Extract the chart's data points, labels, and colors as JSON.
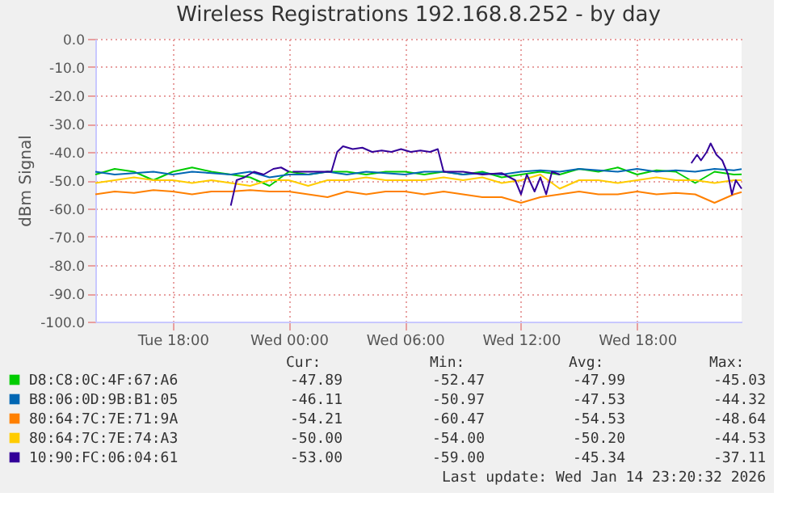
{
  "chart_data": {
    "type": "line",
    "title": "Wireless Registrations 192.168.8.252 - by day",
    "ylabel": "dBm Signal",
    "x": [
      "2026-01-13T14:00",
      "2026-01-13T15:00",
      "2026-01-13T16:00",
      "2026-01-13T17:00",
      "2026-01-13T18:00",
      "2026-01-13T19:00",
      "2026-01-13T20:00",
      "2026-01-13T21:00",
      "2026-01-13T22:00",
      "2026-01-13T23:00",
      "2026-01-14T00:00",
      "2026-01-14T01:00",
      "2026-01-14T02:00",
      "2026-01-14T03:00",
      "2026-01-14T04:00",
      "2026-01-14T05:00",
      "2026-01-14T06:00",
      "2026-01-14T07:00",
      "2026-01-14T08:00",
      "2026-01-14T09:00",
      "2026-01-14T10:00",
      "2026-01-14T11:00",
      "2026-01-14T12:00",
      "2026-01-14T13:00",
      "2026-01-14T14:00",
      "2026-01-14T15:00",
      "2026-01-14T16:00",
      "2026-01-14T17:00",
      "2026-01-14T18:00",
      "2026-01-14T19:00",
      "2026-01-14T20:00",
      "2026-01-14T21:00",
      "2026-01-14T22:00",
      "2026-01-14T23:00",
      "2026-01-14T23:24"
    ],
    "xlim": [
      "2026-01-13T14:00",
      "2026-01-14T23:24"
    ],
    "xticks": [
      {
        "value": "2026-01-13T18:00",
        "label": "Tue 18:00"
      },
      {
        "value": "2026-01-14T00:00",
        "label": "Wed 00:00"
      },
      {
        "value": "2026-01-14T06:00",
        "label": "Wed 06:00"
      },
      {
        "value": "2026-01-14T12:00",
        "label": "Wed 12:00"
      },
      {
        "value": "2026-01-14T18:00",
        "label": "Wed 18:00"
      }
    ],
    "ylim": [
      -100,
      0
    ],
    "yticks": [
      {
        "value": 0,
        "label": "0.0"
      },
      {
        "value": -10,
        "label": "-10.0"
      },
      {
        "value": -20,
        "label": "-20.0"
      },
      {
        "value": -30,
        "label": "-30.0"
      },
      {
        "value": -40,
        "label": "-40.0"
      },
      {
        "value": -50,
        "label": "-50.0"
      },
      {
        "value": -60,
        "label": "-60.0"
      },
      {
        "value": -70,
        "label": "-70.0"
      },
      {
        "value": -80,
        "label": "-80.0"
      },
      {
        "value": -90,
        "label": "-90.0"
      },
      {
        "value": -100,
        "label": "-100.0"
      }
    ],
    "grid": true,
    "legend": "bottom",
    "line_style": "solid",
    "marker": "none",
    "series": [
      {
        "name": "D8:C8:0C:4F:67:A6",
        "color": "#00cc00",
        "values": [
          -48,
          -46,
          -47,
          -50,
          -47,
          -45.5,
          -47,
          -48,
          -49,
          -52,
          -47,
          -48,
          -47,
          -47,
          -48,
          -47,
          -47,
          -48,
          -47,
          -48,
          -47,
          -49,
          -48,
          -47,
          -48,
          -46,
          -47,
          -45.5,
          -48,
          -46.5,
          -47,
          -51,
          -47,
          -48,
          -47.9
        ]
      },
      {
        "name": "B8:06:0D:9B:B1:05",
        "color": "#0066b3",
        "values": [
          -47,
          -48,
          -47.5,
          -47,
          -48,
          -47,
          -47.5,
          -48,
          -47,
          -49,
          -48,
          -48,
          -47,
          -48,
          -47,
          -47.5,
          -48,
          -47,
          -47,
          -48,
          -47.5,
          -48,
          -47,
          -46.5,
          -47,
          -46,
          -46.5,
          -47,
          -46,
          -47,
          -46.5,
          -47,
          -46,
          -46.5,
          -46.1
        ]
      },
      {
        "name": "80:64:7C:7E:71:9A",
        "color": "#ff8000",
        "values": [
          -55,
          -54,
          -54.5,
          -53.5,
          -54,
          -55,
          -54,
          -54,
          -53.5,
          -54,
          -54,
          -55,
          -56,
          -54,
          -55,
          -54,
          -54,
          -55,
          -54,
          -55,
          -56,
          -56,
          -58,
          -56,
          -55,
          -54,
          -55,
          -55,
          -54,
          -55,
          -54.5,
          -55,
          -58,
          -55,
          -54.2
        ]
      },
      {
        "name": "80:64:7C:7E:74:A3",
        "color": "#ffcc00",
        "values": [
          -51,
          -50,
          -49,
          -50,
          -50,
          -51,
          -50,
          -51,
          -52,
          -50,
          -50,
          -52,
          -50,
          -50,
          -49,
          -50,
          -50,
          -50,
          -49,
          -50,
          -49,
          -51,
          -50,
          -48,
          -53,
          -50,
          -50,
          -51,
          -50,
          -49,
          -50,
          -50,
          -51,
          -50,
          -50
        ]
      },
      {
        "name": "10:90:FC:06:04:61",
        "color": "#330099",
        "x": [
          "2026-01-13T21:00",
          "2026-01-13T21:18",
          "2026-01-13T21:42",
          "2026-01-13T22:12",
          "2026-01-13T22:42",
          "2026-01-13T23:12",
          "2026-01-13T23:36",
          "2026-01-14T00:00",
          "2026-01-14T00:06",
          "2026-01-14T00:12",
          "2026-01-14T02:12",
          "2026-01-14T02:30",
          "2026-01-14T02:48",
          "2026-01-14T03:18",
          "2026-01-14T03:48",
          "2026-01-14T04:18",
          "2026-01-14T04:48",
          "2026-01-14T05:18",
          "2026-01-14T05:48",
          "2026-01-14T06:18",
          "2026-01-14T06:48",
          "2026-01-14T07:18",
          "2026-01-14T07:42",
          "2026-01-14T08:00",
          "2026-01-14T09:00",
          "2026-01-14T10:00",
          "2026-01-14T11:00",
          "2026-01-14T11:42",
          "2026-01-14T12:00",
          "2026-01-14T12:18",
          "2026-01-14T12:42",
          "2026-01-14T13:00",
          "2026-01-14T13:18",
          "2026-01-14T13:36",
          "2026-01-14T14:00",
          "2026-01-14T14:24",
          "2026-01-14T20:48",
          "2026-01-14T21:06",
          "2026-01-14T21:18",
          "2026-01-14T21:36",
          "2026-01-14T21:48",
          "2026-01-14T22:06",
          "2026-01-14T22:24",
          "2026-01-14T22:42",
          "2026-01-14T22:54",
          "2026-01-14T23:06",
          "2026-01-14T23:24"
        ],
        "values": [
          -59,
          -50,
          -49,
          -47,
          -48,
          -46,
          -45.5,
          -47,
          null,
          -47,
          -47,
          -40,
          -38,
          -39,
          -38.5,
          -40,
          -39.5,
          -40,
          -39,
          -40,
          -39.5,
          -40,
          -39,
          -47,
          -47,
          -48,
          -47.5,
          -50,
          -55,
          -48,
          -54,
          -49,
          -55,
          -47,
          -48,
          null,
          -44,
          -41,
          -43,
          -40,
          -37,
          -41,
          -43,
          -48,
          -55,
          -50,
          -53
        ]
      }
    ],
    "annotations": [
      "Cur:",
      "Min:",
      "Avg:",
      "Max:",
      "-47.89",
      "-52.47",
      "-47.99",
      "-45.03",
      "-46.11",
      "-50.97",
      "-47.53",
      "-44.32",
      "-54.21",
      "-60.47",
      "-54.53",
      "-48.64",
      "-50.00",
      "-54.00",
      "-50.20",
      "-44.53",
      "-53.00",
      "-59.00",
      "-45.34",
      "-37.11",
      "Last update: Wed Jan 14 23:20:32 2026"
    ]
  }
}
